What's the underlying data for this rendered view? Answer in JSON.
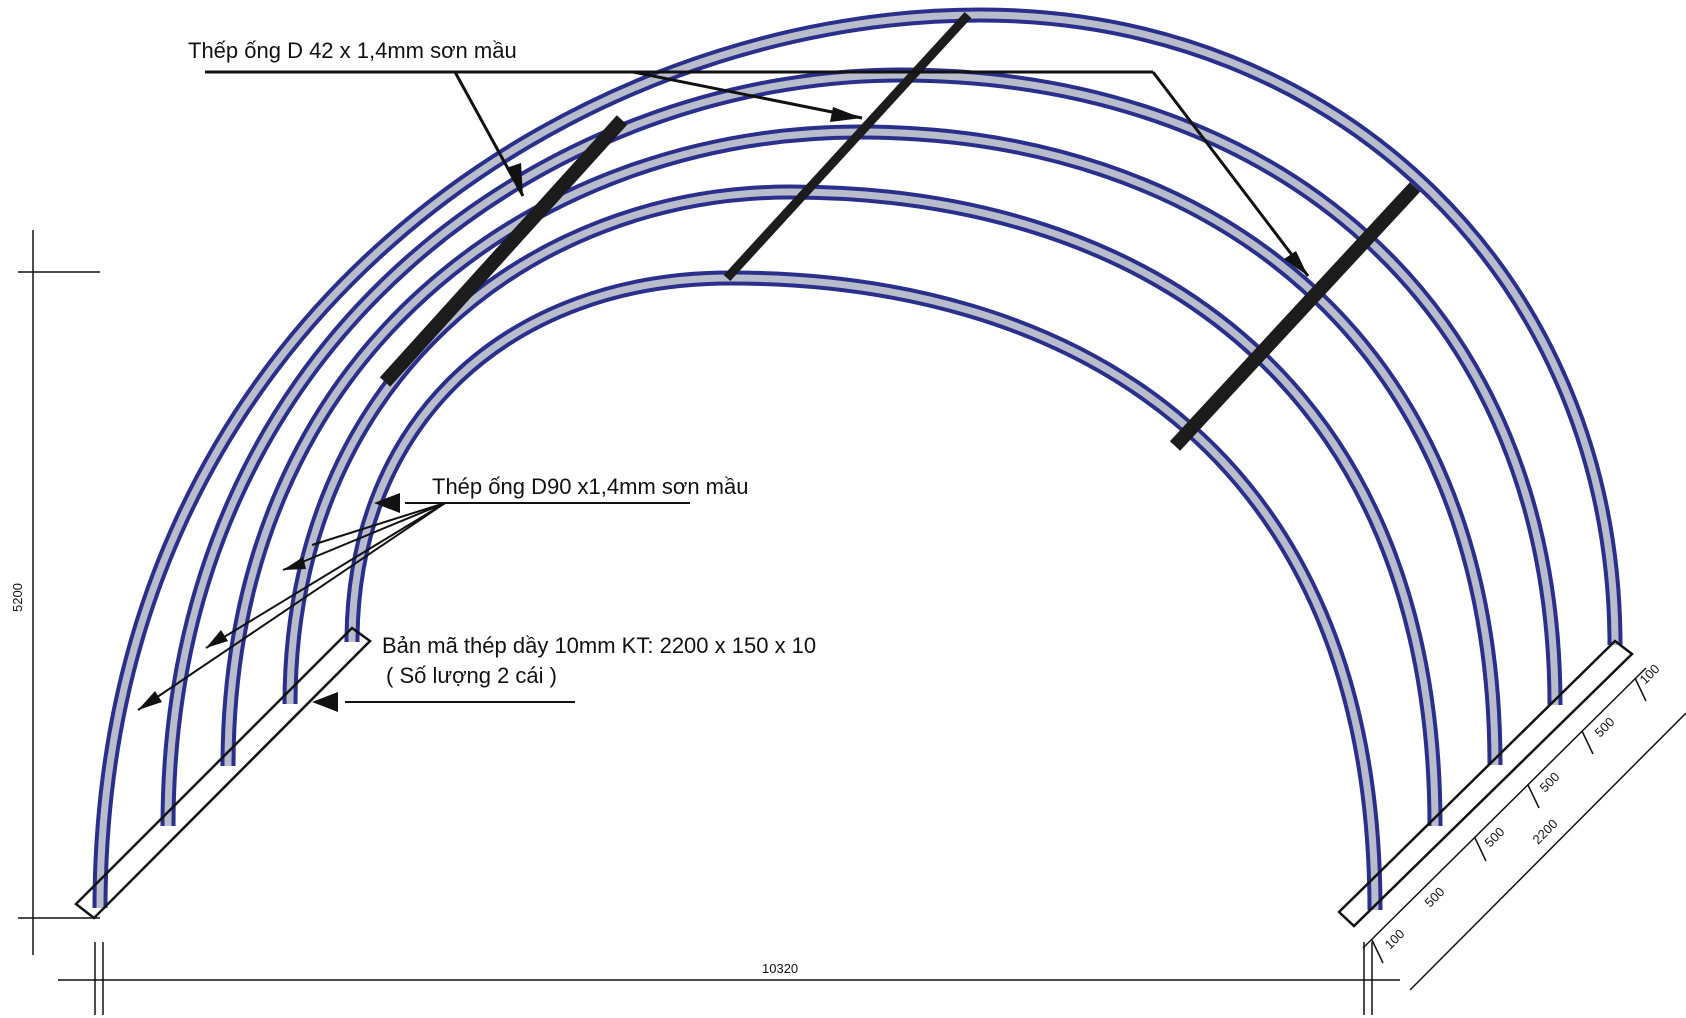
{
  "labels": {
    "purlin_pipe": "Thếp ống D 42 x 1,4mm sơn mầu",
    "arch_pipe": "Thép ống D90 x1,4mm sơn mầu",
    "base_plate_line1": "Bản mã thép dầy 10mm KT: 2200 x 150 x 10",
    "base_plate_line2": "( Số lượng 2 cái )"
  },
  "dimensions": {
    "height": "5200",
    "span": "10320",
    "base_total": "2200",
    "base_end_offset": "100",
    "base_spacing": "500"
  },
  "colors": {
    "arch_outline": "#2a2f8c",
    "arch_fill": "#b9bccb",
    "purlin": "#1c1c1c",
    "line": "#111111"
  }
}
